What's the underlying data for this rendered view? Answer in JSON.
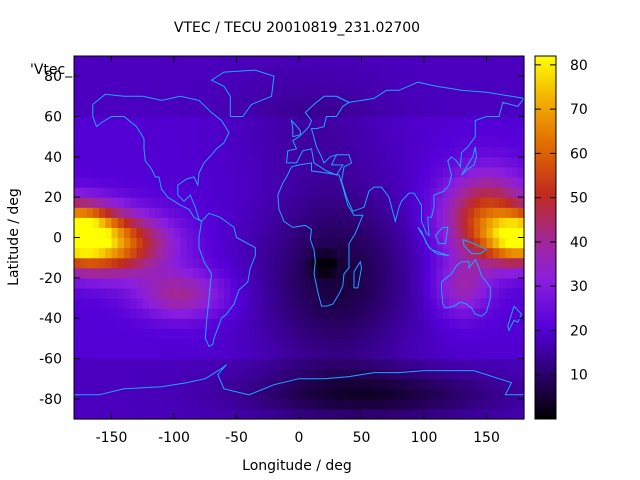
{
  "chart_data": {
    "type": "heatmap",
    "title": "VTEC / TECU 20010819_231.02700",
    "xlabel": "Longitude / deg",
    "ylabel": "Latitude / deg",
    "legend_label": "'Vtec_",
    "xlim": [
      -180,
      180
    ],
    "ylim": [
      -90,
      90
    ],
    "x_ticks": [
      "-150",
      "-100",
      "-50",
      "0",
      "50",
      "100",
      "150"
    ],
    "y_ticks": [
      "-80",
      "-60",
      "-40",
      "-20",
      "0",
      "20",
      "40",
      "60",
      "80"
    ],
    "colorbar": {
      "range": [
        0,
        82
      ],
      "ticks": [
        "10",
        "20",
        "30",
        "40",
        "50",
        "60",
        "70",
        "80"
      ],
      "palette": "black-blue-purple-red-orange-yellow"
    },
    "grid": {
      "lon_step": 5,
      "lat_step": 5
    },
    "notable_regions": [
      {
        "name": "Pacific equatorial maximum",
        "lon": 180,
        "lat": 0,
        "value": 78
      },
      {
        "name": "Southern Africa minimum",
        "lon": 20,
        "lat": -13,
        "value": 5
      },
      {
        "name": "Antarctic minimum",
        "lon": 80,
        "lat": -80,
        "value": 4
      }
    ],
    "overlay": "coastlines"
  }
}
